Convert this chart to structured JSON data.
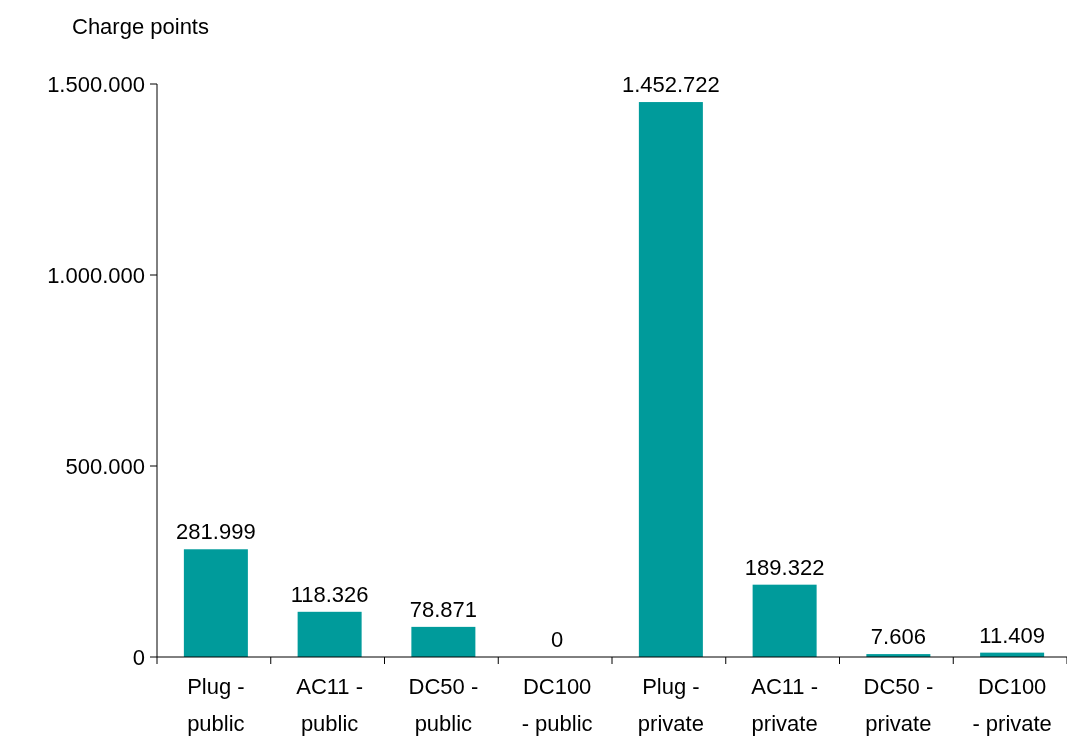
{
  "chart_data": {
    "type": "bar",
    "ylabel": "Charge points",
    "categories": [
      "Plug - public",
      "AC11 - public",
      "DC50 - public",
      "DC100 - public",
      "Plug - private",
      "AC11 - private",
      "DC50 - private",
      "DC100 - private"
    ],
    "values": [
      281999,
      118326,
      78871,
      0,
      1452722,
      189322,
      7606,
      11409
    ],
    "value_labels": [
      "281.999",
      "118.326",
      "78.871",
      "0",
      "1.452.722",
      "189.322",
      "7.606",
      "11.409"
    ],
    "color": "#009b9b",
    "ylim": [
      0,
      1500000
    ],
    "yticks": [
      {
        "value": 0,
        "label": "0"
      },
      {
        "value": 500000,
        "label": "500.000"
      },
      {
        "value": 1000000,
        "label": "1.000.000"
      },
      {
        "value": 1500000,
        "label": "1.500.000"
      }
    ],
    "grid": false
  }
}
